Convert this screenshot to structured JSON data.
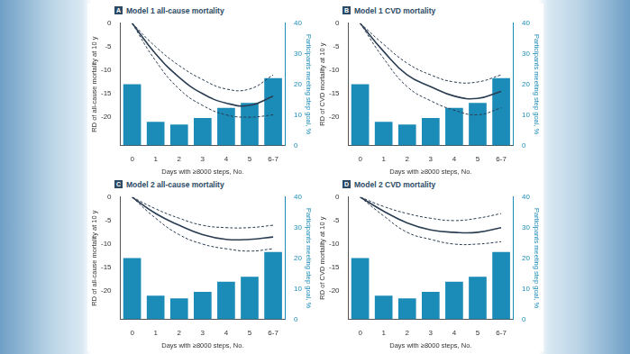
{
  "chart_data": [
    {
      "type": "bar",
      "panel_label": "A",
      "title": "Model 1 all-cause mortality",
      "x_label": "Days with ≥8000 steps, No.",
      "y_label": "RD of all-cause mortality at 10 y",
      "y2_label": "Participants meeting step goal, %",
      "categories": [
        "0",
        "1",
        "2",
        "3",
        "4",
        "5",
        "6-7"
      ],
      "ylim": [
        -26,
        0
      ],
      "yticks": [
        -20,
        -15,
        -10,
        -5,
        0
      ],
      "y2lim": [
        0,
        40
      ],
      "y2ticks": [
        0,
        10,
        20,
        30,
        40
      ],
      "grid": false,
      "series": [
        {
          "type": "bar",
          "axis": "y2",
          "color": "#1b8bb8",
          "values": [
            20,
            7.7,
            6.8,
            9,
            12.3,
            13.9,
            22
          ]
        },
        {
          "type": "line",
          "color": "#2b3d52",
          "line_style": "solid",
          "values": [
            0,
            -6.5,
            -11.5,
            -15,
            -17,
            -17.5,
            -15.5
          ]
        },
        {
          "type": "line",
          "color": "#2b3d52",
          "line_style": "dashed",
          "values": [
            0,
            -5,
            -9,
            -12,
            -14,
            -14,
            -11
          ]
        },
        {
          "type": "line",
          "color": "#2b3d52",
          "line_style": "dashed",
          "values": [
            0,
            -8,
            -14,
            -17.5,
            -19.5,
            -20,
            -19.5
          ]
        }
      ]
    },
    {
      "type": "bar",
      "panel_label": "B",
      "title": "Model 1 CVD mortality",
      "x_label": "Days with ≥8000 steps, No.",
      "y_label": "RD of CVD mortality at 10 y",
      "y2_label": "Participants meeting step goal, %",
      "categories": [
        "0",
        "1",
        "2",
        "3",
        "4",
        "5",
        "6-7"
      ],
      "ylim": [
        -26,
        0
      ],
      "yticks": [
        -20,
        -15,
        -10,
        -5,
        0
      ],
      "y2lim": [
        0,
        40
      ],
      "y2ticks": [
        0,
        10,
        20,
        30,
        40
      ],
      "grid": false,
      "series": [
        {
          "type": "bar",
          "axis": "y2",
          "color": "#1b8bb8",
          "values": [
            20,
            7.7,
            6.8,
            9,
            12.3,
            13.9,
            22
          ]
        },
        {
          "type": "line",
          "color": "#2b3d52",
          "line_style": "solid",
          "values": [
            0,
            -6,
            -11,
            -13.5,
            -15.5,
            -16,
            -14.5
          ]
        },
        {
          "type": "line",
          "color": "#2b3d52",
          "line_style": "dashed",
          "values": [
            0,
            -4.5,
            -8.5,
            -11,
            -12.5,
            -12.5,
            -11
          ]
        },
        {
          "type": "line",
          "color": "#2b3d52",
          "line_style": "dashed",
          "values": [
            0,
            -7.5,
            -13.5,
            -16.5,
            -18.5,
            -19.5,
            -18
          ]
        }
      ]
    },
    {
      "type": "bar",
      "panel_label": "C",
      "title": "Model 2 all-cause mortality",
      "x_label": "Days with ≥8000 steps, No.",
      "y_label": "RD of all-cause mortality at 10 y",
      "y2_label": "Participants meeting step goal, %",
      "categories": [
        "0",
        "1",
        "2",
        "3",
        "4",
        "5",
        "6-7"
      ],
      "ylim": [
        -26,
        0
      ],
      "yticks": [
        -20,
        -15,
        -10,
        -5,
        0
      ],
      "y2lim": [
        0,
        40
      ],
      "y2ticks": [
        0,
        10,
        20,
        30,
        40
      ],
      "grid": false,
      "series": [
        {
          "type": "bar",
          "axis": "y2",
          "color": "#1b8bb8",
          "values": [
            20,
            7.7,
            6.8,
            9,
            12.3,
            13.9,
            22
          ]
        },
        {
          "type": "line",
          "color": "#2b3d52",
          "line_style": "solid",
          "values": [
            0,
            -3.5,
            -6,
            -8,
            -9,
            -9,
            -8.5
          ]
        },
        {
          "type": "line",
          "color": "#2b3d52",
          "line_style": "dashed",
          "values": [
            0,
            -2.5,
            -4.5,
            -6,
            -6.5,
            -6.5,
            -6
          ]
        },
        {
          "type": "line",
          "color": "#2b3d52",
          "line_style": "dashed",
          "values": [
            0,
            -4.5,
            -8,
            -10,
            -11,
            -11.5,
            -11
          ]
        }
      ]
    },
    {
      "type": "bar",
      "panel_label": "D",
      "title": "Model 2 CVD mortality",
      "x_label": "Days with ≥8000 steps, No.",
      "y_label": "RD of CVD mortality at 10 y",
      "y2_label": "Participants meeting step goal, %",
      "categories": [
        "0",
        "1",
        "2",
        "3",
        "4",
        "5",
        "6-7"
      ],
      "ylim": [
        -26,
        0
      ],
      "yticks": [
        -20,
        -15,
        -10,
        -5,
        0
      ],
      "y2lim": [
        0,
        40
      ],
      "y2ticks": [
        0,
        10,
        20,
        30,
        40
      ],
      "grid": false,
      "series": [
        {
          "type": "bar",
          "axis": "y2",
          "color": "#1b8bb8",
          "values": [
            20,
            7.7,
            6.8,
            9,
            12.3,
            13.9,
            22
          ]
        },
        {
          "type": "line",
          "color": "#2b3d52",
          "line_style": "solid",
          "values": [
            0,
            -3,
            -5.5,
            -7,
            -7.5,
            -7.5,
            -6.5
          ]
        },
        {
          "type": "line",
          "color": "#2b3d52",
          "line_style": "dashed",
          "values": [
            0,
            -2,
            -3.5,
            -4.5,
            -5,
            -4.5,
            -3.5
          ]
        },
        {
          "type": "line",
          "color": "#2b3d52",
          "line_style": "dashed",
          "values": [
            0,
            -4,
            -7.5,
            -9,
            -10,
            -10,
            -9.5
          ]
        }
      ]
    }
  ]
}
